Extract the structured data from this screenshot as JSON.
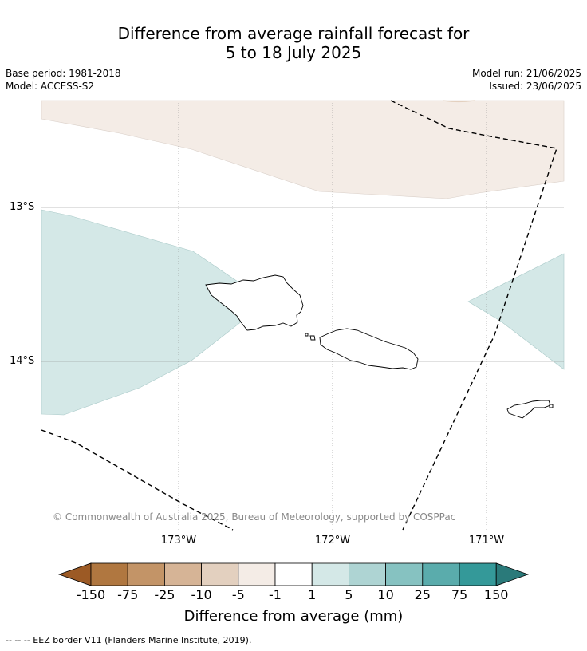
{
  "title_line1": "Difference from average rainfall forecast for",
  "title_line2": "5 to 18 July 2025",
  "meta_left": {
    "base_period": "Base period: 1981-2018",
    "model": "Model: ACCESS-S2"
  },
  "meta_right": {
    "model_run": "Model run: 21/06/2025",
    "issued": "Issued: 23/06/2025"
  },
  "lat_labels": [
    "13°S",
    "14°S"
  ],
  "lon_labels": [
    "173°W",
    "172°W",
    "171°W"
  ],
  "copyright": "© Commonwealth of Australia 2025, Bureau of Meteorology, supported by COSPPac",
  "legend": {
    "title": "Difference from average (mm)",
    "ticks": [
      "-150",
      "-75",
      "-25",
      "-10",
      "-5",
      "-1",
      "1",
      "5",
      "10",
      "25",
      "75",
      "150"
    ],
    "colors": [
      "#9c5a25",
      "#b07740",
      "#c39467",
      "#d6b496",
      "#e3d0bf",
      "#f4ece6",
      "#ffffff",
      "#d4e8e7",
      "#aed4d3",
      "#86c2c1",
      "#5aacac",
      "#349999",
      "#2a7a7a"
    ]
  },
  "footnote": "--  --  -- EEZ border V11 (Flanders Marine Institute, 2019)."
}
